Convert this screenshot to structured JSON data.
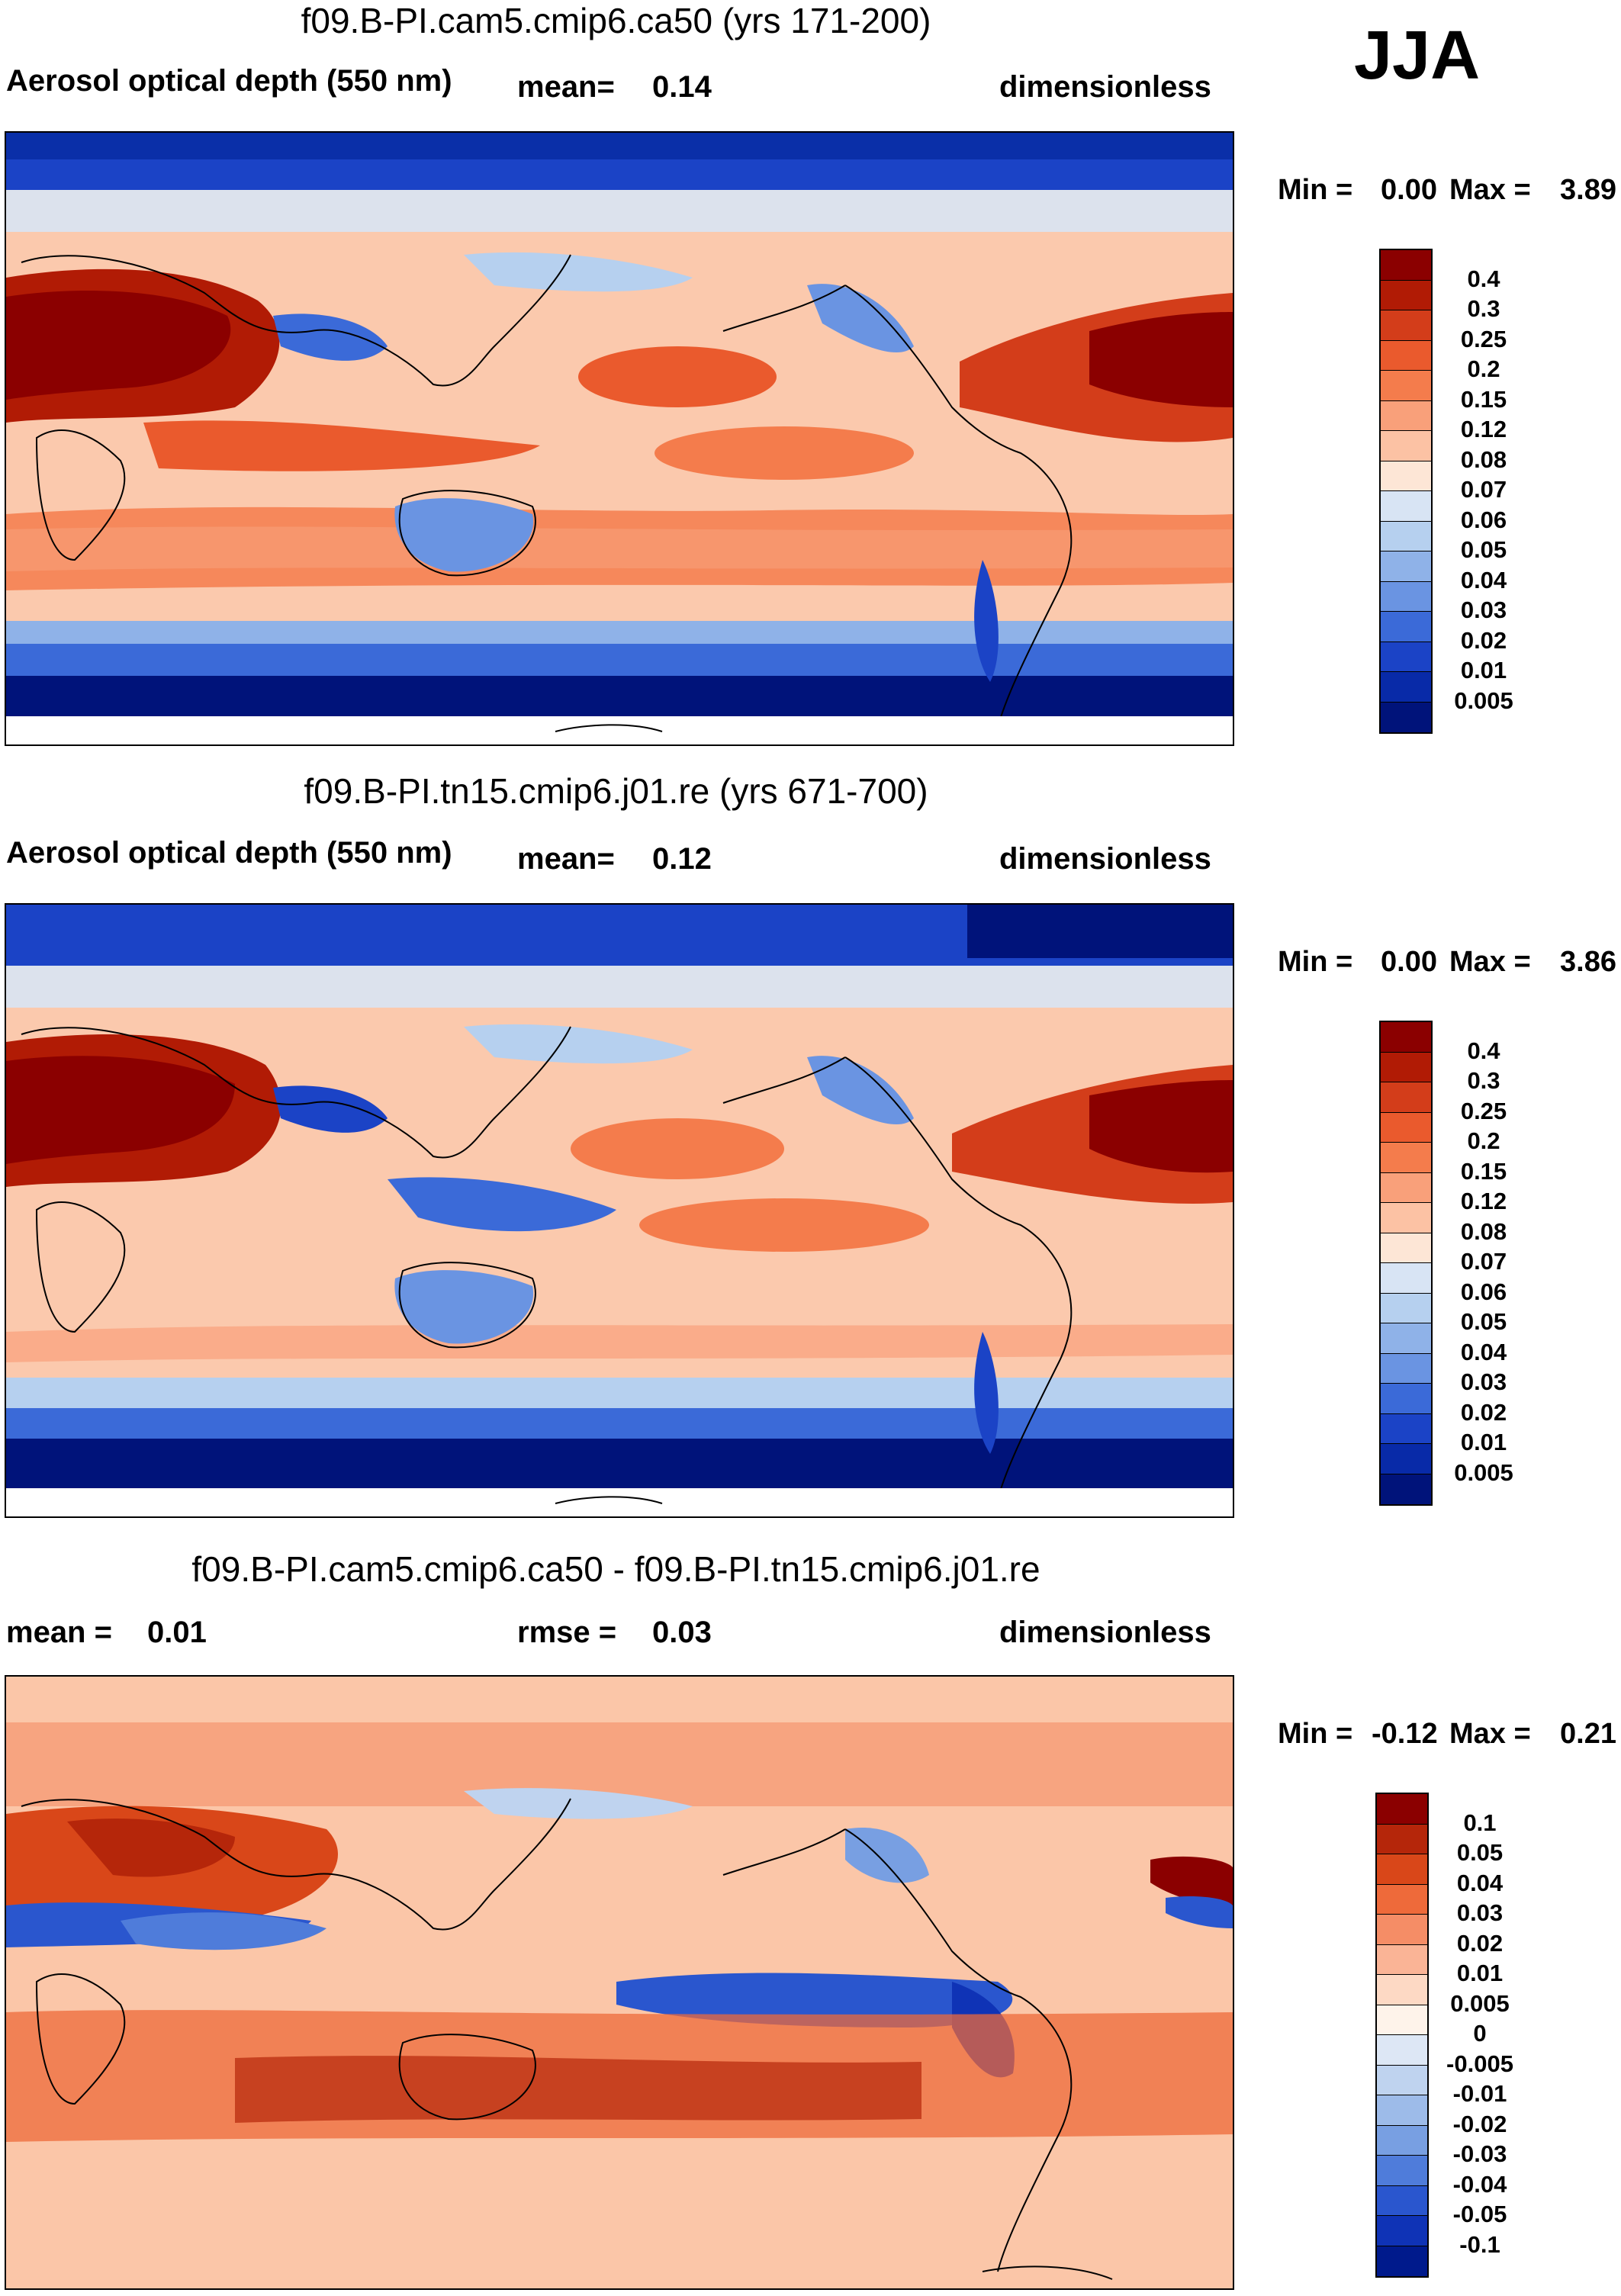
{
  "season": "JJA",
  "colors": {
    "abs_scale": [
      "#8b0000",
      "#b11b05",
      "#d33d1a",
      "#ea5a2d",
      "#f47c4c",
      "#f9a07a",
      "#fcc2a4",
      "#fde6d6",
      "#d8e4f4",
      "#b6d0ef",
      "#8fb2e8",
      "#6a94e2",
      "#3b6ad8",
      "#1b43c6",
      "#082aa8",
      "#00137a"
    ],
    "diff_scale": [
      "#8b0000",
      "#b5260a",
      "#d94719",
      "#ee6a3a",
      "#f58d66",
      "#fab496",
      "#fdd9c4",
      "#fef3ea",
      "#dde7f5",
      "#bfd3ef",
      "#9dbbe9",
      "#789fe2",
      "#4f7cda",
      "#2a56ce",
      "#0f33b6",
      "#001a8c"
    ],
    "ocean_abs": "#fbc9ad",
    "ocean_diff": "#fbc6a8",
    "coast": "#000000"
  },
  "panels": [
    {
      "title": "f09.B-PI.cam5.cmip6.ca50 (yrs 171-200)",
      "left_label": "Aerosol optical depth (550 nm)",
      "mid_key": "mean=",
      "mid_value": "0.14",
      "units": "dimensionless",
      "min_label": "Min =",
      "min_value": "0.00",
      "max_label": "Max =",
      "max_value": "3.89",
      "colorbar_labels": [
        "0.4",
        "0.3",
        "0.25",
        "0.2",
        "0.15",
        "0.12",
        "0.08",
        "0.07",
        "0.06",
        "0.05",
        "0.04",
        "0.03",
        "0.02",
        "0.01",
        "0.005"
      ]
    },
    {
      "title": "f09.B-PI.tn15.cmip6.j01.re (yrs 671-700)",
      "left_label": "Aerosol optical depth (550 nm)",
      "mid_key": "mean=",
      "mid_value": "0.12",
      "units": "dimensionless",
      "min_label": "Min =",
      "min_value": "0.00",
      "max_label": "Max =",
      "max_value": "3.86",
      "colorbar_labels": [
        "0.4",
        "0.3",
        "0.25",
        "0.2",
        "0.15",
        "0.12",
        "0.08",
        "0.07",
        "0.06",
        "0.05",
        "0.04",
        "0.03",
        "0.02",
        "0.01",
        "0.005"
      ]
    },
    {
      "title": "f09.B-PI.cam5.cmip6.ca50 - f09.B-PI.tn15.cmip6.j01.re",
      "left_key": "mean =",
      "left_value": "0.01",
      "mid_key": "rmse =",
      "mid_value": "0.03",
      "units": "dimensionless",
      "min_label": "Min =",
      "min_value": "-0.12",
      "max_label": "Max =",
      "max_value": "0.21",
      "colorbar_labels": [
        "0.1",
        "0.05",
        "0.04",
        "0.03",
        "0.02",
        "0.01",
        "0.005",
        "0",
        "-0.005",
        "-0.01",
        "-0.02",
        "-0.03",
        "-0.04",
        "-0.05",
        "-0.1"
      ]
    }
  ]
}
